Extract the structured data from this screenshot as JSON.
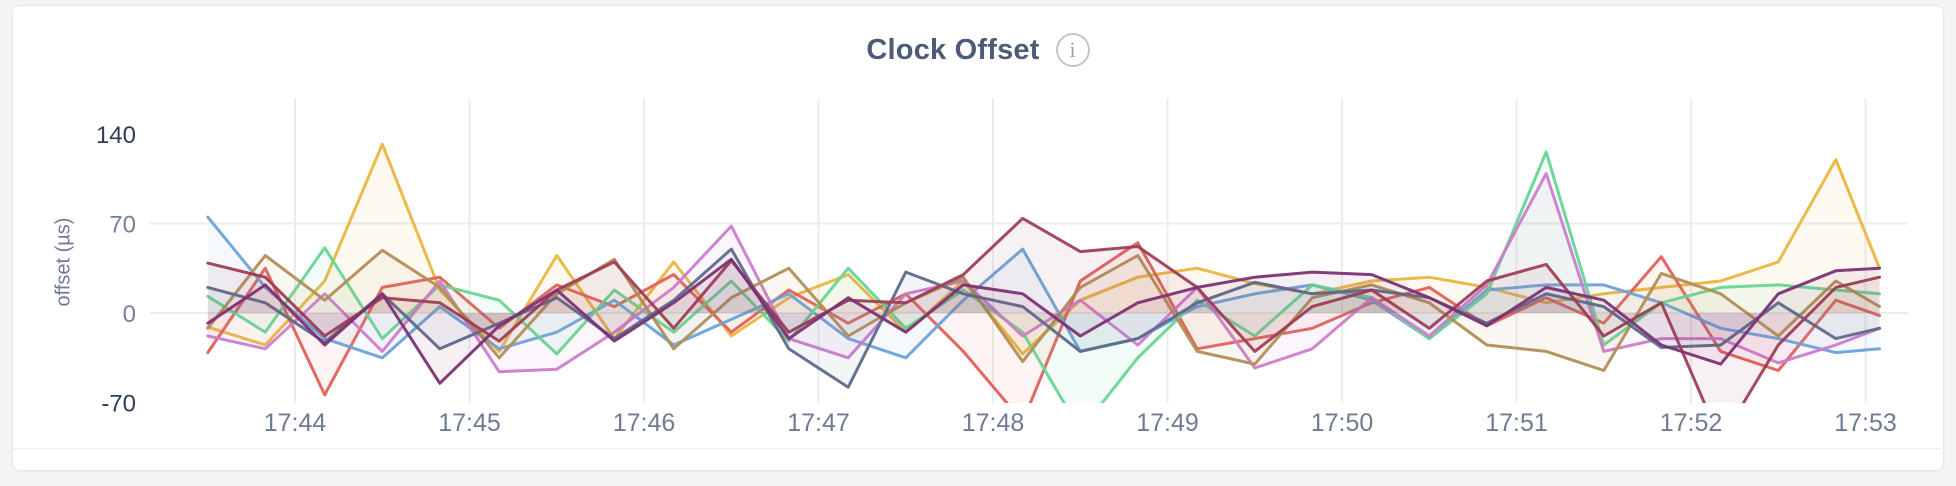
{
  "panel": {
    "info_icon": "i"
  },
  "palette": {
    "page_background": "#f4f4f6",
    "card_background": "#ffffff",
    "card_border": "#e6e7e9",
    "title_color": "#4c5c77",
    "grid_color": "#ececec",
    "axis_tick_muted": "#76809b",
    "axis_tick_strong": "#2e3c5c",
    "x_tick_color": "#6f7a94"
  },
  "chart_data": {
    "type": "line",
    "title": "Clock Offset",
    "ylabel": "offset (µs)",
    "xlabel": "",
    "ylim": [
      -70,
      140
    ],
    "grid": {
      "horizontal_values": [
        70,
        0
      ],
      "vertical_at_ticks": true
    },
    "legend_position": "none",
    "x_format": "minutes past 17:00",
    "x": [
      43.5,
      43.83,
      44.17,
      44.5,
      44.83,
      45.17,
      45.5,
      45.83,
      46.17,
      46.5,
      46.83,
      47.17,
      47.5,
      47.83,
      48.17,
      48.5,
      48.83,
      49.17,
      49.5,
      49.83,
      50.17,
      50.5,
      50.83,
      51.17,
      51.5,
      51.83,
      52.17,
      52.5,
      52.83,
      53.08
    ],
    "x_ticks": [
      {
        "label": "17:44",
        "minute": 44
      },
      {
        "label": "17:45",
        "minute": 45
      },
      {
        "label": "17:46",
        "minute": 46
      },
      {
        "label": "17:47",
        "minute": 47
      },
      {
        "label": "17:48",
        "minute": 48
      },
      {
        "label": "17:49",
        "minute": 49
      },
      {
        "label": "17:50",
        "minute": 50
      },
      {
        "label": "17:51",
        "minute": 51
      },
      {
        "label": "17:52",
        "minute": 52
      },
      {
        "label": "17:53",
        "minute": 53
      }
    ],
    "y_ticks": [
      {
        "label": "140",
        "value": 140,
        "strong": true
      },
      {
        "label": "70",
        "value": 70,
        "strong": false
      },
      {
        "label": "0",
        "value": 0,
        "strong": false
      },
      {
        "label": "-70",
        "value": -70,
        "strong": true
      }
    ],
    "series": [
      {
        "id": "series-yellow",
        "color": "#EAB63F",
        "values": [
          -11,
          -25,
          25,
          132,
          18,
          -30,
          45,
          -20,
          40,
          -18,
          12,
          30,
          -15,
          25,
          -32,
          10,
          28,
          35,
          23,
          15,
          25,
          28,
          20,
          8,
          15,
          20,
          25,
          40,
          120,
          35
        ]
      },
      {
        "id": "series-red",
        "color": "#E16059",
        "values": [
          -31,
          35,
          -64,
          20,
          28,
          -12,
          22,
          5,
          30,
          -15,
          18,
          -8,
          15,
          -30,
          -85,
          25,
          55,
          -28,
          -20,
          -12,
          8,
          20,
          -10,
          12,
          -8,
          44,
          -30,
          -45,
          10,
          -2
        ]
      },
      {
        "id": "series-blue",
        "color": "#6BA3DA",
        "values": [
          75,
          20,
          -20,
          -35,
          5,
          -28,
          -15,
          10,
          -25,
          -5,
          15,
          -20,
          -35,
          10,
          50,
          -30,
          -20,
          5,
          15,
          22,
          10,
          -20,
          18,
          22,
          22,
          8,
          -12,
          -20,
          -31,
          -28
        ]
      },
      {
        "id": "series-green",
        "color": "#66D693",
        "values": [
          13,
          -15,
          51,
          -20,
          22,
          10,
          -32,
          18,
          -15,
          25,
          -22,
          35,
          -12,
          18,
          -15,
          -92,
          -35,
          10,
          -18,
          22,
          12,
          -20,
          15,
          126,
          -25,
          8,
          20,
          22,
          18,
          15
        ]
      },
      {
        "id": "series-orchid",
        "color": "#CD7CCC",
        "values": [
          -18,
          -28,
          15,
          -30,
          25,
          -46,
          -44,
          -15,
          20,
          68,
          -20,
          -35,
          15,
          25,
          -18,
          10,
          -25,
          20,
          -43,
          -28,
          12,
          -18,
          22,
          109,
          -30,
          -20,
          -20,
          -39,
          -25,
          -12
        ]
      },
      {
        "id": "series-tan",
        "color": "#B28E55",
        "values": [
          -12,
          45,
          10,
          49,
          20,
          -35,
          15,
          42,
          -28,
          12,
          35,
          -18,
          8,
          28,
          -38,
          20,
          45,
          -30,
          -40,
          12,
          22,
          8,
          -25,
          -30,
          -45,
          31,
          15,
          -18,
          25,
          5
        ]
      },
      {
        "id": "series-slate",
        "color": "#5D6B8B",
        "values": [
          20,
          8,
          -23,
          15,
          -28,
          -8,
          12,
          -20,
          10,
          50,
          -28,
          -58,
          32,
          15,
          5,
          -30,
          -20,
          8,
          24,
          15,
          18,
          12,
          -8,
          15,
          5,
          -27,
          -25,
          8,
          -20,
          -12
        ]
      },
      {
        "id": "series-maroon",
        "color": "#9E3E55",
        "values": [
          39,
          28,
          -18,
          12,
          8,
          -22,
          18,
          40,
          -12,
          41,
          -15,
          10,
          8,
          30,
          74,
          48,
          52,
          20,
          -30,
          5,
          18,
          -12,
          25,
          38,
          -18,
          8,
          -100,
          -25,
          20,
          28
        ]
      },
      {
        "id": "series-purple",
        "color": "#7C3173",
        "values": [
          -8,
          22,
          -25,
          15,
          -55,
          -10,
          18,
          -22,
          8,
          42,
          -20,
          12,
          -15,
          22,
          15,
          -18,
          8,
          20,
          28,
          32,
          30,
          12,
          -10,
          20,
          10,
          -25,
          -40,
          15,
          33,
          35
        ]
      }
    ]
  }
}
